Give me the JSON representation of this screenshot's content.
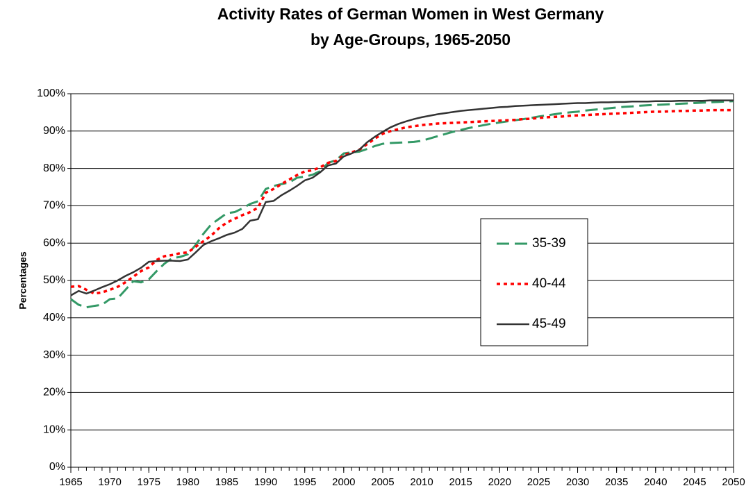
{
  "chart_data": {
    "type": "line",
    "title": "Activity Rates of German Women in West Germany",
    "subtitle": "by Age-Groups, 1965-2050",
    "ylabel": "Percentages",
    "x": [
      1965,
      1966,
      1967,
      1968,
      1969,
      1970,
      1971,
      1972,
      1973,
      1974,
      1975,
      1976,
      1977,
      1978,
      1979,
      1980,
      1981,
      1982,
      1983,
      1984,
      1985,
      1986,
      1987,
      1988,
      1989,
      1990,
      1991,
      1992,
      1993,
      1994,
      1995,
      1996,
      1997,
      1998,
      1999,
      2000,
      2001,
      2002,
      2003,
      2004,
      2005,
      2006,
      2007,
      2008,
      2009,
      2010,
      2011,
      2012,
      2013,
      2014,
      2015,
      2016,
      2017,
      2018,
      2019,
      2020,
      2021,
      2022,
      2023,
      2024,
      2025,
      2026,
      2027,
      2028,
      2029,
      2030,
      2031,
      2032,
      2033,
      2034,
      2035,
      2036,
      2037,
      2038,
      2039,
      2040,
      2041,
      2042,
      2043,
      2044,
      2045,
      2046,
      2047,
      2048,
      2049,
      2050
    ],
    "series": [
      {
        "name": "35-39",
        "color": "#339966",
        "dash": "dashed",
        "values": [
          45,
          43.5,
          42.8,
          43.2,
          43.5,
          45,
          45.2,
          47.5,
          49.8,
          49.5,
          50.3,
          52.5,
          54.5,
          56,
          56.3,
          57,
          59.5,
          62.5,
          65,
          66.5,
          68,
          68.3,
          69.3,
          70.5,
          71.2,
          74.5,
          75.3,
          75.8,
          76.2,
          77.5,
          77.8,
          78.3,
          79.3,
          81.5,
          82.2,
          84,
          84.3,
          84.5,
          85.2,
          86,
          86.6,
          86.8,
          86.9,
          87,
          87.1,
          87.4,
          88,
          88.6,
          89.2,
          89.8,
          90.3,
          90.8,
          91.2,
          91.6,
          92,
          92.3,
          92.6,
          92.9,
          93.2,
          93.5,
          93.9,
          94.2,
          94.5,
          94.8,
          95,
          95.2,
          95.5,
          95.7,
          95.9,
          96.1,
          96.3,
          96.5,
          96.6,
          96.8,
          96.9,
          97,
          97.1,
          97.2,
          97.3,
          97.4,
          97.5,
          97.6,
          97.7,
          97.8,
          97.9,
          98
        ]
      },
      {
        "name": "40-44",
        "color": "#ff0000",
        "dash": "dotted",
        "values": [
          48.3,
          48.5,
          47.5,
          46.5,
          46.8,
          47.5,
          48.3,
          49.5,
          51,
          52.5,
          53.5,
          55.5,
          56.5,
          56.8,
          57.3,
          57.5,
          59,
          60.5,
          62,
          64,
          65.5,
          66.5,
          67.5,
          68.3,
          69.5,
          73.5,
          74.5,
          75.8,
          77,
          78.2,
          79.2,
          79.5,
          80.3,
          81.5,
          82,
          83.5,
          84.3,
          85,
          86.5,
          88,
          89.3,
          90,
          90.5,
          91,
          91.3,
          91.6,
          91.8,
          92,
          92.1,
          92.2,
          92.3,
          92.4,
          92.5,
          92.6,
          92.7,
          92.8,
          92.9,
          93,
          93.2,
          93.3,
          93.5,
          93.7,
          93.8,
          93.9,
          94.1,
          94.2,
          94.3,
          94.4,
          94.5,
          94.6,
          94.7,
          94.8,
          94.9,
          95,
          95.1,
          95.2,
          95.2,
          95.3,
          95.4,
          95.4,
          95.5,
          95.5,
          95.6,
          95.6,
          95.6,
          95.6
        ]
      },
      {
        "name": "45-49",
        "color": "#333333",
        "dash": "solid",
        "values": [
          46,
          47.2,
          46.5,
          47.3,
          48.2,
          49,
          50,
          51.2,
          52.2,
          53.4,
          55,
          55.2,
          55.3,
          55.3,
          55.2,
          55.6,
          57.5,
          59.5,
          60.5,
          61.3,
          62.2,
          62.8,
          63.8,
          66,
          66.4,
          71,
          71.3,
          72.8,
          74,
          75.3,
          76.8,
          77.5,
          79,
          80.8,
          81.3,
          83.2,
          84,
          85,
          87,
          88.5,
          89.8,
          91,
          91.9,
          92.6,
          93.2,
          93.7,
          94.1,
          94.5,
          94.8,
          95.1,
          95.4,
          95.6,
          95.8,
          96,
          96.2,
          96.4,
          96.5,
          96.7,
          96.8,
          96.9,
          97,
          97.1,
          97.2,
          97.3,
          97.4,
          97.5,
          97.5,
          97.6,
          97.7,
          97.7,
          97.8,
          97.8,
          97.9,
          97.9,
          97.9,
          98,
          98,
          98,
          98.1,
          98.1,
          98.1,
          98.1,
          98.2,
          98.2,
          98.2,
          98.2
        ]
      }
    ],
    "xlim": [
      1965,
      2050
    ],
    "xticks": [
      1965,
      1970,
      1975,
      1980,
      1985,
      1990,
      1995,
      2000,
      2005,
      2010,
      2015,
      2020,
      2025,
      2030,
      2035,
      2040,
      2045,
      2050
    ],
    "ylim": [
      0,
      100
    ],
    "yticks": [
      {
        "value": 0,
        "label": "0%"
      },
      {
        "value": 10,
        "label": "10%"
      },
      {
        "value": 20,
        "label": "20%"
      },
      {
        "value": 30,
        "label": "30%"
      },
      {
        "value": 40,
        "label": "40%"
      },
      {
        "value": 50,
        "label": "50%"
      },
      {
        "value": 60,
        "label": "60%"
      },
      {
        "value": 70,
        "label": "70%"
      },
      {
        "value": 80,
        "label": "80%"
      },
      {
        "value": 90,
        "label": "90%"
      },
      {
        "value": 100,
        "label": "100%"
      }
    ],
    "grid": true,
    "legend": "center right"
  }
}
